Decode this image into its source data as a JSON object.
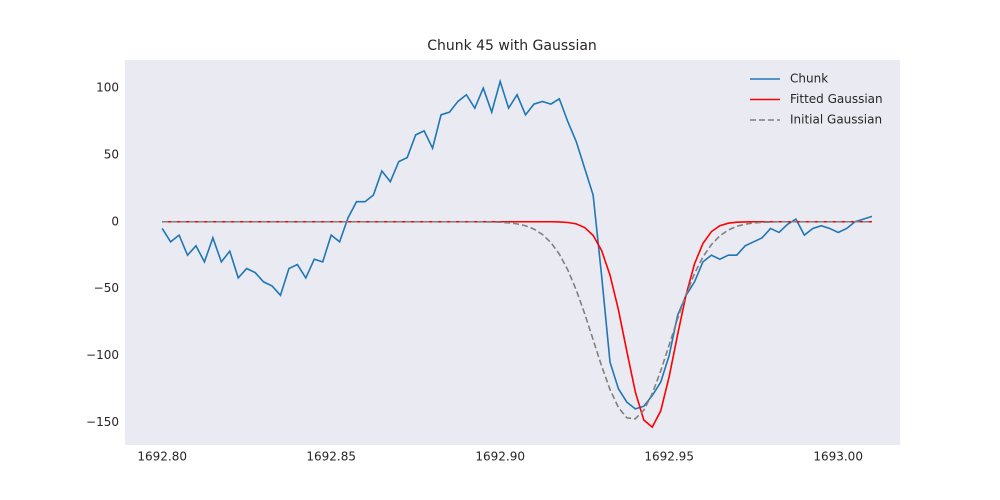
{
  "chart_data": {
    "type": "line",
    "title": "Chunk 45 with Gaussian",
    "x": [
      1692.8,
      1692.8025,
      1692.805,
      1692.8075,
      1692.81,
      1692.8125,
      1692.815,
      1692.8175,
      1692.82,
      1692.8225,
      1692.825,
      1692.8275,
      1692.83,
      1692.8325,
      1692.835,
      1692.8375,
      1692.84,
      1692.8425,
      1692.845,
      1692.8475,
      1692.85,
      1692.8525,
      1692.855,
      1692.8575,
      1692.86,
      1692.8625,
      1692.865,
      1692.8675,
      1692.87,
      1692.8725,
      1692.875,
      1692.8775,
      1692.88,
      1692.8825,
      1692.885,
      1692.8875,
      1692.89,
      1692.8925,
      1692.895,
      1692.8975,
      1692.9,
      1692.9025,
      1692.905,
      1692.9075,
      1692.91,
      1692.9125,
      1692.915,
      1692.9175,
      1692.92,
      1692.9225,
      1692.925,
      1692.9275,
      1692.93,
      1692.9325,
      1692.935,
      1692.9375,
      1692.94,
      1692.9425,
      1692.945,
      1692.9475,
      1692.95,
      1692.9525,
      1692.955,
      1692.9575,
      1692.96,
      1692.9625,
      1692.965,
      1692.9675,
      1692.97,
      1692.9725,
      1692.975,
      1692.9775,
      1692.98,
      1692.9825,
      1692.985,
      1692.9875,
      1692.99,
      1692.9925,
      1692.995,
      1692.9975,
      1693.0,
      1693.0025,
      1693.005,
      1693.0075,
      1693.01
    ],
    "series": [
      {
        "name": "Chunk",
        "color": "#1f77b4",
        "style": "solid",
        "values": [
          -5,
          -15,
          -10,
          -25,
          -18,
          -30,
          -12,
          -30,
          -22,
          -42,
          -35,
          -38,
          -45,
          -48,
          -55,
          -35,
          -32,
          -42,
          -28,
          -30,
          -10,
          -15,
          3,
          15,
          15,
          20,
          38,
          30,
          45,
          48,
          65,
          68,
          55,
          80,
          82,
          90,
          95,
          85,
          100,
          82,
          105,
          85,
          95,
          80,
          88,
          90,
          88,
          92,
          75,
          60,
          40,
          20,
          -40,
          -105,
          -125,
          -135,
          -140,
          -138,
          -130,
          -120,
          -100,
          -70,
          -55,
          -45,
          -30,
          -25,
          -28,
          -25,
          -25,
          -18,
          -15,
          -12,
          -5,
          -8,
          -2,
          2,
          -10,
          -5,
          -3,
          -5,
          -8,
          -5,
          0,
          2,
          4
        ]
      },
      {
        "name": "Fitted Gaussian",
        "color": "#ff0000",
        "style": "solid",
        "values": [
          0,
          0,
          0,
          0,
          0,
          0,
          0,
          0,
          0,
          0,
          0,
          0,
          0,
          0,
          0,
          0,
          0,
          0,
          0,
          0,
          0,
          0,
          0,
          0,
          0,
          0,
          0,
          0,
          0,
          0,
          0,
          0,
          0,
          0,
          0,
          0,
          0,
          0,
          0,
          0,
          0,
          0,
          0,
          0,
          0,
          0,
          0,
          -0.16,
          -0.55,
          -1.6,
          -4.3,
          -10.2,
          -21.4,
          -39.9,
          -66,
          -97.2,
          -127.4,
          -148.3,
          -153.6,
          -141.5,
          -115.9,
          -84.5,
          -54.7,
          -31.5,
          -16.2,
          -7.4,
          -3,
          -1.1,
          -0.35,
          -0.1,
          0,
          0,
          0,
          0,
          0,
          0,
          0,
          0,
          0,
          0,
          0,
          0,
          0,
          0,
          0
        ]
      },
      {
        "name": "Initial Gaussian",
        "color": "#808080",
        "style": "dashed",
        "values": [
          0,
          0,
          0,
          0,
          0,
          0,
          0,
          0,
          0,
          0,
          0,
          0,
          0,
          0,
          0,
          0,
          0,
          0,
          0,
          0,
          0,
          0,
          0,
          0,
          0,
          0,
          0,
          0,
          0,
          0,
          0,
          0,
          0,
          0,
          0,
          0,
          0,
          0,
          -0.08,
          -0.18,
          -0.38,
          -0.8,
          -1.6,
          -3,
          -5.5,
          -9.5,
          -15.5,
          -24.2,
          -36,
          -51,
          -68.7,
          -88.2,
          -107.8,
          -125.5,
          -139,
          -146.7,
          -147.4,
          -141,
          -128.5,
          -111.6,
          -92.2,
          -72.5,
          -54.4,
          -38.8,
          -26.3,
          -17.1,
          -10.5,
          -6.2,
          -3.4,
          -1.8,
          -0.9,
          -0.45,
          -0.2,
          0,
          0,
          0,
          0,
          0,
          0,
          0,
          0,
          0,
          0,
          0,
          0
        ]
      }
    ],
    "xlim": [
      1692.789,
      1693.0183
    ],
    "xticks": [
      {
        "value": 1692.8,
        "label": "1692.80"
      },
      {
        "value": 1692.85,
        "label": "1692.85"
      },
      {
        "value": 1692.9,
        "label": "1692.90"
      },
      {
        "value": 1692.95,
        "label": "1692.95"
      },
      {
        "value": 1693.0,
        "label": "1693.00"
      }
    ],
    "ylim": [
      -167,
      121
    ],
    "yticks": [
      {
        "value": -150,
        "label": "−150"
      },
      {
        "value": -100,
        "label": "−100"
      },
      {
        "value": -50,
        "label": "−50"
      },
      0,
      50,
      100
    ],
    "grid": false,
    "legend": "upper right"
  }
}
